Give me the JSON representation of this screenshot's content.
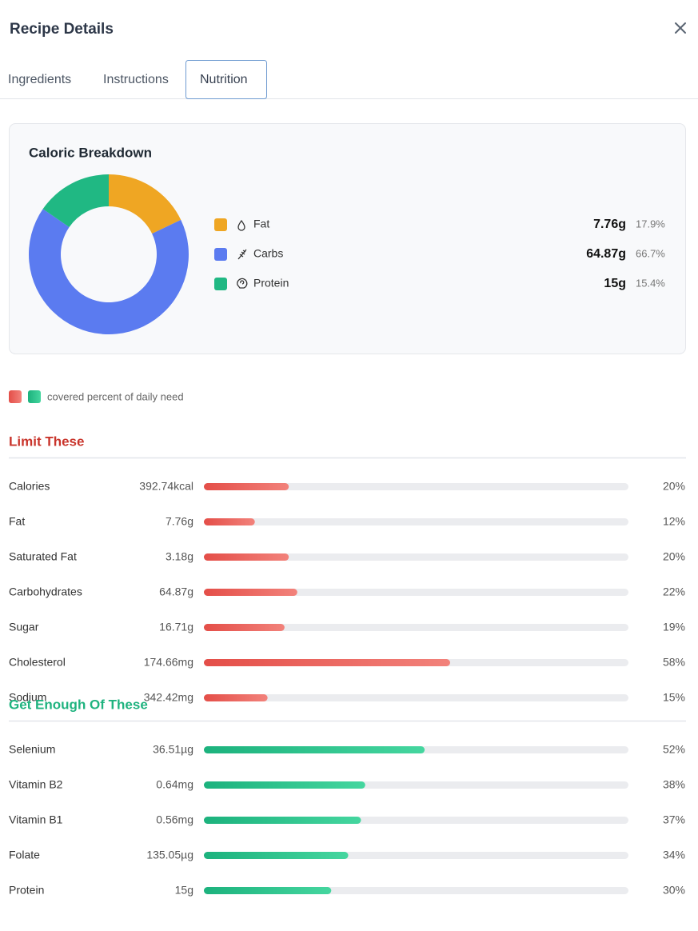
{
  "header": {
    "title": "Recipe Details"
  },
  "tabs": [
    "Ingredients",
    "Instructions",
    "Nutrition"
  ],
  "active_tab": 2,
  "chart_data": {
    "type": "donut",
    "title": "Caloric Breakdown",
    "categories": [
      "Fat",
      "Carbs",
      "Protein"
    ],
    "amounts": [
      "7.76g",
      "64.87g",
      "15g"
    ],
    "values": [
      17.9,
      66.7,
      15.4
    ],
    "value_labels": [
      "17.9%",
      "66.7%",
      "15.4%"
    ],
    "colors": [
      "#efa623",
      "#5b7bf0",
      "#20b883"
    ]
  },
  "legend_note": "covered percent of daily need",
  "sections": [
    {
      "title": "Limit These",
      "color": "#c9342b",
      "bar_gradient": "red",
      "names": [
        "Calories",
        "Fat",
        "Saturated Fat",
        "Carbohydrates",
        "Sugar",
        "Cholesterol",
        "Sodium"
      ],
      "amounts": [
        "392.74kcal",
        "7.76g",
        "3.18g",
        "64.87g",
        "16.71g",
        "174.66mg",
        "342.42mg"
      ],
      "values": [
        20,
        12,
        20,
        22,
        19,
        58,
        15
      ],
      "value_labels": [
        "20%",
        "12%",
        "20%",
        "22%",
        "19%",
        "58%",
        "15%"
      ]
    },
    {
      "title": "Get Enough Of These",
      "color": "#1fb37f",
      "bar_gradient": "green",
      "names": [
        "Selenium",
        "Vitamin B2",
        "Vitamin B1",
        "Folate",
        "Protein"
      ],
      "amounts": [
        "36.51µg",
        "0.64mg",
        "0.56mg",
        "135.05µg",
        "15g"
      ],
      "values": [
        52,
        38,
        37,
        34,
        30
      ],
      "value_labels": [
        "52%",
        "38%",
        "37%",
        "34%",
        "30%"
      ]
    }
  ]
}
